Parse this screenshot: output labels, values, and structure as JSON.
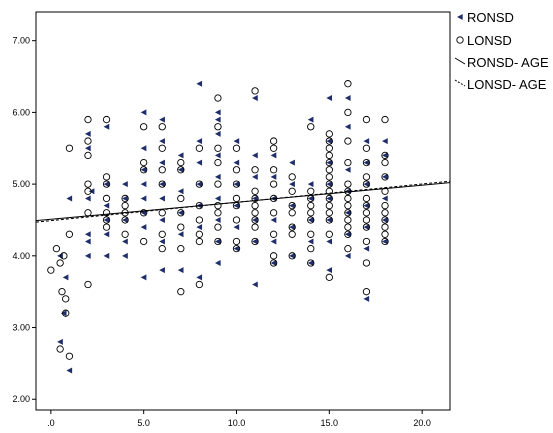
{
  "chart_data": {
    "type": "scatter",
    "title": "",
    "xlabel": "",
    "ylabel": "",
    "xlim": [
      -0.8,
      21.5
    ],
    "ylim": [
      1.85,
      7.4
    ],
    "x_ticks": [
      0,
      5,
      10,
      15,
      20
    ],
    "x_tick_labels": [
      ".0",
      "5.0",
      "10.0",
      "15.0",
      "20.0"
    ],
    "y_ticks": [
      2,
      3,
      4,
      5,
      6,
      7
    ],
    "y_tick_labels": [
      "2.00",
      "3.00",
      "4.00",
      "5.00",
      "6.00",
      "7.00"
    ],
    "grid": false,
    "legend_position": "outside-top-right",
    "series": [
      {
        "name": "RONSD",
        "marker": "left-triangle-filled",
        "color": "#1f2d6b",
        "points": [
          [
            0.5,
            2.8
          ],
          [
            0.8,
            3.7
          ],
          [
            1.0,
            2.4
          ],
          [
            1.0,
            4.8
          ],
          [
            0.5,
            4.0
          ],
          [
            0.7,
            3.2
          ],
          [
            2.0,
            5.7
          ],
          [
            2.0,
            5.5
          ],
          [
            2.0,
            4.8
          ],
          [
            2.0,
            4.3
          ],
          [
            2.0,
            4.2
          ],
          [
            2.2,
            4.9
          ],
          [
            2.0,
            4.0
          ],
          [
            3.0,
            5.8
          ],
          [
            3.0,
            5.0
          ],
          [
            3.0,
            4.7
          ],
          [
            3.0,
            4.5
          ],
          [
            3.0,
            4.3
          ],
          [
            3.0,
            4.0
          ],
          [
            4.0,
            5.0
          ],
          [
            4.0,
            4.8
          ],
          [
            4.0,
            4.5
          ],
          [
            4.0,
            4.2
          ],
          [
            4.0,
            4.0
          ],
          [
            5.0,
            6.0
          ],
          [
            5.0,
            5.5
          ],
          [
            5.0,
            5.2
          ],
          [
            5.0,
            5.0
          ],
          [
            5.0,
            4.8
          ],
          [
            5.0,
            4.6
          ],
          [
            5.0,
            4.4
          ],
          [
            5.0,
            3.7
          ],
          [
            6.0,
            5.9
          ],
          [
            6.0,
            5.6
          ],
          [
            6.0,
            5.3
          ],
          [
            6.0,
            5.0
          ],
          [
            6.0,
            4.8
          ],
          [
            6.0,
            4.5
          ],
          [
            6.0,
            4.2
          ],
          [
            6.0,
            3.8
          ],
          [
            7.0,
            5.4
          ],
          [
            7.0,
            5.2
          ],
          [
            7.0,
            4.9
          ],
          [
            7.0,
            4.6
          ],
          [
            7.0,
            4.3
          ],
          [
            7.0,
            3.8
          ],
          [
            8.0,
            6.4
          ],
          [
            8.0,
            5.6
          ],
          [
            8.0,
            5.3
          ],
          [
            8.0,
            5.0
          ],
          [
            8.0,
            4.7
          ],
          [
            8.0,
            4.4
          ],
          [
            8.0,
            3.7
          ],
          [
            9.0,
            6.0
          ],
          [
            9.0,
            5.9
          ],
          [
            9.0,
            5.7
          ],
          [
            9.0,
            5.4
          ],
          [
            9.0,
            5.1
          ],
          [
            9.0,
            4.8
          ],
          [
            9.0,
            4.5
          ],
          [
            9.0,
            4.2
          ],
          [
            9.0,
            3.9
          ],
          [
            10.0,
            5.6
          ],
          [
            10.0,
            5.3
          ],
          [
            10.0,
            5.0
          ],
          [
            10.0,
            4.7
          ],
          [
            10.0,
            4.4
          ],
          [
            10.0,
            4.1
          ],
          [
            11.0,
            6.2
          ],
          [
            11.0,
            5.4
          ],
          [
            11.0,
            5.1
          ],
          [
            11.0,
            4.8
          ],
          [
            11.0,
            4.5
          ],
          [
            11.0,
            4.2
          ],
          [
            11.0,
            3.6
          ],
          [
            12.0,
            5.4
          ],
          [
            12.0,
            5.1
          ],
          [
            12.0,
            4.8
          ],
          [
            12.0,
            4.5
          ],
          [
            12.0,
            4.2
          ],
          [
            12.0,
            3.9
          ],
          [
            13.0,
            5.3
          ],
          [
            13.0,
            5.0
          ],
          [
            13.0,
            4.7
          ],
          [
            13.0,
            4.4
          ],
          [
            13.0,
            4.0
          ],
          [
            14.0,
            5.9
          ],
          [
            14.0,
            5.0
          ],
          [
            14.0,
            4.8
          ],
          [
            14.0,
            4.5
          ],
          [
            14.0,
            4.2
          ],
          [
            14.0,
            3.9
          ],
          [
            15.0,
            6.2
          ],
          [
            15.0,
            5.6
          ],
          [
            15.0,
            5.3
          ],
          [
            15.0,
            5.0
          ],
          [
            15.0,
            4.8
          ],
          [
            15.0,
            4.5
          ],
          [
            15.0,
            4.2
          ],
          [
            15.0,
            3.8
          ],
          [
            16.0,
            6.2
          ],
          [
            16.0,
            5.8
          ],
          [
            16.0,
            5.2
          ],
          [
            16.0,
            4.9
          ],
          [
            16.0,
            4.6
          ],
          [
            16.0,
            4.3
          ],
          [
            16.0,
            4.0
          ],
          [
            17.0,
            5.6
          ],
          [
            17.0,
            5.3
          ],
          [
            17.0,
            5.0
          ],
          [
            17.0,
            4.7
          ],
          [
            17.0,
            4.4
          ],
          [
            17.0,
            4.1
          ],
          [
            17.0,
            3.4
          ],
          [
            18.0,
            5.6
          ],
          [
            18.0,
            5.4
          ],
          [
            18.0,
            5.1
          ],
          [
            18.0,
            4.8
          ],
          [
            18.0,
            4.5
          ],
          [
            18.0,
            4.2
          ]
        ]
      },
      {
        "name": "LONSD",
        "marker": "circle-open",
        "color": "#000000",
        "points": [
          [
            0.0,
            3.8
          ],
          [
            0.3,
            4.1
          ],
          [
            0.5,
            3.9
          ],
          [
            0.6,
            3.5
          ],
          [
            0.8,
            3.4
          ],
          [
            0.8,
            3.2
          ],
          [
            0.5,
            2.7
          ],
          [
            1.0,
            2.6
          ],
          [
            1.0,
            4.3
          ],
          [
            1.0,
            5.5
          ],
          [
            0.7,
            4.0
          ],
          [
            2.0,
            5.9
          ],
          [
            2.0,
            5.6
          ],
          [
            2.0,
            5.4
          ],
          [
            2.0,
            5.0
          ],
          [
            2.0,
            4.9
          ],
          [
            2.0,
            4.6
          ],
          [
            2.0,
            3.6
          ],
          [
            3.0,
            5.9
          ],
          [
            3.0,
            5.1
          ],
          [
            3.0,
            5.0
          ],
          [
            3.0,
            4.8
          ],
          [
            3.0,
            4.6
          ],
          [
            3.0,
            4.5
          ],
          [
            3.0,
            4.4
          ],
          [
            4.0,
            4.8
          ],
          [
            4.0,
            4.7
          ],
          [
            4.0,
            4.6
          ],
          [
            4.0,
            4.5
          ],
          [
            4.0,
            4.3
          ],
          [
            5.0,
            5.8
          ],
          [
            5.0,
            5.3
          ],
          [
            5.0,
            5.2
          ],
          [
            5.0,
            4.6
          ],
          [
            5.0,
            4.2
          ],
          [
            6.0,
            5.8
          ],
          [
            6.0,
            5.5
          ],
          [
            6.0,
            5.2
          ],
          [
            6.0,
            5.0
          ],
          [
            6.0,
            4.6
          ],
          [
            6.0,
            4.3
          ],
          [
            6.0,
            4.1
          ],
          [
            7.0,
            5.3
          ],
          [
            7.0,
            5.2
          ],
          [
            7.0,
            4.8
          ],
          [
            7.0,
            4.6
          ],
          [
            7.0,
            4.4
          ],
          [
            7.0,
            4.1
          ],
          [
            7.0,
            3.5
          ],
          [
            8.0,
            5.5
          ],
          [
            8.0,
            5.0
          ],
          [
            8.0,
            4.7
          ],
          [
            8.0,
            4.5
          ],
          [
            8.0,
            4.3
          ],
          [
            8.0,
            4.2
          ],
          [
            8.0,
            3.6
          ],
          [
            9.0,
            6.2
          ],
          [
            9.0,
            5.8
          ],
          [
            9.0,
            5.5
          ],
          [
            9.0,
            5.3
          ],
          [
            9.0,
            5.0
          ],
          [
            9.0,
            4.7
          ],
          [
            9.0,
            4.6
          ],
          [
            9.0,
            4.4
          ],
          [
            9.0,
            4.2
          ],
          [
            10.0,
            5.5
          ],
          [
            10.0,
            5.2
          ],
          [
            10.0,
            5.0
          ],
          [
            10.0,
            4.8
          ],
          [
            10.0,
            4.7
          ],
          [
            10.0,
            4.5
          ],
          [
            10.0,
            4.2
          ],
          [
            10.0,
            4.1
          ],
          [
            11.0,
            6.3
          ],
          [
            11.0,
            5.2
          ],
          [
            11.0,
            4.9
          ],
          [
            11.0,
            4.8
          ],
          [
            11.0,
            4.7
          ],
          [
            11.0,
            4.6
          ],
          [
            11.0,
            4.5
          ],
          [
            11.0,
            4.4
          ],
          [
            11.0,
            4.2
          ],
          [
            12.0,
            5.6
          ],
          [
            12.0,
            5.5
          ],
          [
            12.0,
            5.2
          ],
          [
            12.0,
            5.0
          ],
          [
            12.0,
            4.8
          ],
          [
            12.0,
            4.6
          ],
          [
            12.0,
            4.3
          ],
          [
            12.0,
            4.0
          ],
          [
            12.0,
            3.9
          ],
          [
            13.0,
            5.1
          ],
          [
            13.0,
            4.9
          ],
          [
            13.0,
            4.7
          ],
          [
            13.0,
            4.6
          ],
          [
            13.0,
            4.4
          ],
          [
            13.0,
            4.3
          ],
          [
            13.0,
            4.0
          ],
          [
            14.0,
            5.8
          ],
          [
            14.0,
            4.9
          ],
          [
            14.0,
            4.8
          ],
          [
            14.0,
            4.7
          ],
          [
            14.0,
            4.6
          ],
          [
            14.0,
            4.5
          ],
          [
            14.0,
            4.3
          ],
          [
            14.0,
            4.1
          ],
          [
            14.0,
            3.9
          ],
          [
            15.0,
            5.7
          ],
          [
            15.0,
            5.6
          ],
          [
            15.0,
            5.5
          ],
          [
            15.0,
            5.4
          ],
          [
            15.0,
            5.3
          ],
          [
            15.0,
            5.2
          ],
          [
            15.0,
            5.1
          ],
          [
            15.0,
            5.0
          ],
          [
            15.0,
            4.9
          ],
          [
            15.0,
            4.8
          ],
          [
            15.0,
            4.7
          ],
          [
            15.0,
            4.6
          ],
          [
            15.0,
            4.5
          ],
          [
            15.0,
            4.3
          ],
          [
            15.0,
            3.7
          ],
          [
            16.0,
            6.4
          ],
          [
            16.0,
            6.0
          ],
          [
            16.0,
            5.6
          ],
          [
            16.0,
            5.3
          ],
          [
            16.0,
            5.0
          ],
          [
            16.0,
            4.9
          ],
          [
            16.0,
            4.8
          ],
          [
            16.0,
            4.7
          ],
          [
            16.0,
            4.6
          ],
          [
            16.0,
            4.5
          ],
          [
            16.0,
            4.4
          ],
          [
            16.0,
            4.3
          ],
          [
            16.0,
            4.1
          ],
          [
            17.0,
            5.9
          ],
          [
            17.0,
            5.5
          ],
          [
            17.0,
            5.3
          ],
          [
            17.0,
            5.1
          ],
          [
            17.0,
            5.0
          ],
          [
            17.0,
            4.8
          ],
          [
            17.0,
            4.7
          ],
          [
            17.0,
            4.6
          ],
          [
            17.0,
            4.5
          ],
          [
            17.0,
            4.4
          ],
          [
            17.0,
            4.2
          ],
          [
            17.0,
            3.9
          ],
          [
            17.0,
            3.5
          ],
          [
            18.0,
            5.9
          ],
          [
            18.0,
            5.4
          ],
          [
            18.0,
            5.3
          ],
          [
            18.0,
            5.1
          ],
          [
            18.0,
            4.9
          ],
          [
            18.0,
            4.7
          ],
          [
            18.0,
            4.6
          ],
          [
            18.0,
            4.5
          ],
          [
            18.0,
            4.4
          ],
          [
            18.0,
            4.3
          ],
          [
            18.0,
            4.2
          ]
        ]
      },
      {
        "name": "RONSD- AGE",
        "type": "line",
        "style": "solid",
        "color": "#000000",
        "points": [
          [
            -0.8,
            4.49
          ],
          [
            21.5,
            5.02
          ]
        ]
      },
      {
        "name": "LONSD- AGE",
        "type": "line",
        "style": "dashed",
        "color": "#000000",
        "points": [
          [
            -0.8,
            4.47
          ],
          [
            21.5,
            5.04
          ]
        ]
      }
    ]
  }
}
